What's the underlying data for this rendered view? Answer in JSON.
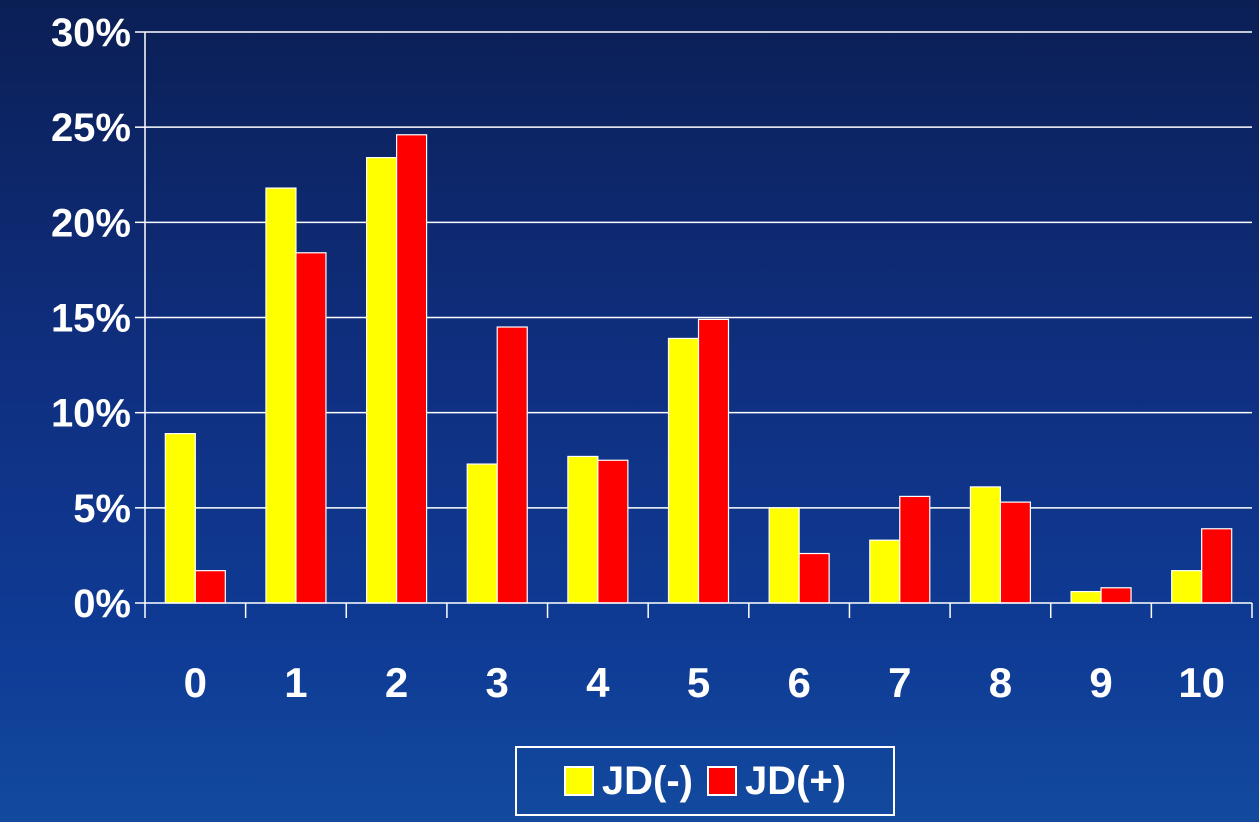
{
  "chart_data": {
    "type": "bar",
    "categories": [
      "0",
      "1",
      "2",
      "3",
      "4",
      "5",
      "6",
      "7",
      "8",
      "9",
      "10"
    ],
    "series": [
      {
        "name": "JD(-)",
        "color": "#ffff00",
        "values": [
          8.9,
          21.8,
          23.4,
          7.3,
          7.7,
          13.9,
          5.0,
          3.3,
          6.1,
          0.6,
          1.7
        ]
      },
      {
        "name": "JD(+)",
        "color": "#ff0000",
        "values": [
          1.7,
          18.4,
          24.6,
          14.5,
          7.5,
          14.9,
          2.6,
          5.6,
          5.3,
          0.8,
          3.9
        ]
      }
    ],
    "y_ticks": [
      "0%",
      "5%",
      "10%",
      "15%",
      "20%",
      "25%",
      "30%"
    ],
    "ylim": [
      0,
      30
    ],
    "grid": true,
    "legend_placement": "bottom-center",
    "title": "",
    "xlabel": "",
    "ylabel": ""
  }
}
